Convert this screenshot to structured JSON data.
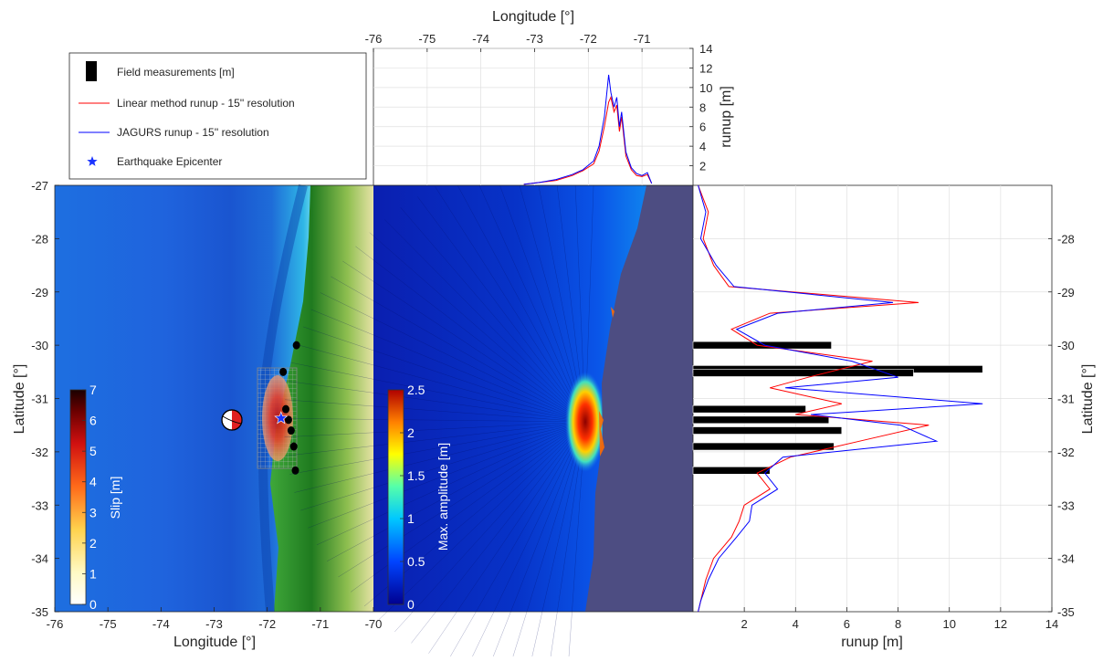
{
  "chart_data": [
    {
      "type": "heatmap",
      "panel": "slip-map",
      "xlabel": "Longitude [°]",
      "ylabel": "Latitude [°]",
      "xlim": [
        -76,
        -70
      ],
      "ylim": [
        -35,
        -27
      ],
      "xticks": [
        "-76",
        "-75",
        "-74",
        "-73",
        "-72",
        "-71",
        "-70"
      ],
      "yticks": [
        "-27",
        "-28",
        "-29",
        "-30",
        "-31",
        "-32",
        "-33",
        "-34",
        "-35"
      ],
      "colorbar": {
        "label": "Slip [m]",
        "range": [
          0,
          7
        ],
        "ticks": [
          "0",
          "1",
          "2",
          "3",
          "4",
          "5",
          "6",
          "7"
        ]
      },
      "epicenter": {
        "lon": -71.74,
        "lat": -31.37
      },
      "focal_mechanism": {
        "lon": -72.6,
        "lat": -31.4
      },
      "fault_patch": {
        "lon": [
          -72.3,
          -71.3
        ],
        "lat": [
          -30.3,
          -32.2
        ]
      },
      "field_points": [
        {
          "lon": -71.45,
          "lat": -30.0
        },
        {
          "lon": -71.7,
          "lat": -30.5
        },
        {
          "lon": -71.65,
          "lat": -31.2
        },
        {
          "lon": -71.6,
          "lat": -31.4
        },
        {
          "lon": -71.55,
          "lat": -31.6
        },
        {
          "lon": -71.5,
          "lat": -31.9
        },
        {
          "lon": -71.47,
          "lat": -32.35
        }
      ]
    },
    {
      "type": "heatmap",
      "panel": "max-amplitude-map",
      "colorbar": {
        "label": "Max. amplitude [m]",
        "range": [
          0,
          2.5
        ],
        "ticks": [
          "0",
          "0.5",
          "1",
          "1.5",
          "2",
          "2.5"
        ]
      }
    },
    {
      "type": "line",
      "panel": "runup-vs-longitude",
      "xlabel": "Longitude [°]",
      "ylabel": "runup [m]",
      "xlim": [
        -76,
        -70
      ],
      "ylim": [
        0,
        14
      ],
      "xticks": [
        "-76",
        "-75",
        "-74",
        "-73",
        "-72",
        "-71"
      ],
      "yticks": [
        "2",
        "4",
        "6",
        "8",
        "10",
        "12",
        "14"
      ],
      "series": [
        {
          "name": "Linear method runup - 15'' resolution",
          "color": "#ff0000",
          "x": [
            -73.2,
            -72.9,
            -72.6,
            -72.3,
            -72.1,
            -71.9,
            -71.8,
            -71.7,
            -71.62,
            -71.58,
            -71.52,
            -71.47,
            -71.42,
            -71.38,
            -71.3,
            -71.2,
            -71.1,
            -71.0,
            -70.9,
            -70.82
          ],
          "y": [
            0.1,
            0.3,
            0.5,
            1.0,
            1.5,
            2.2,
            3.5,
            6.0,
            8.5,
            9.0,
            7.5,
            8.2,
            5.5,
            7.0,
            3.0,
            1.6,
            1.0,
            0.9,
            1.1,
            0.2
          ]
        },
        {
          "name": "JAGURS runup - 15'' resolution",
          "color": "#0000ff",
          "x": [
            -73.2,
            -72.9,
            -72.6,
            -72.3,
            -72.1,
            -71.9,
            -71.8,
            -71.7,
            -71.62,
            -71.58,
            -71.52,
            -71.47,
            -71.42,
            -71.38,
            -71.3,
            -71.2,
            -71.1,
            -71.0,
            -70.9,
            -70.82
          ],
          "y": [
            0.1,
            0.3,
            0.6,
            1.1,
            1.6,
            2.5,
            4.0,
            7.0,
            11.3,
            9.5,
            8.0,
            9.0,
            6.0,
            7.5,
            3.4,
            1.8,
            1.2,
            1.0,
            1.3,
            0.2
          ]
        }
      ]
    },
    {
      "type": "bar",
      "panel": "runup-vs-latitude",
      "xlabel": "runup [m]",
      "ylabel": "Latitude [°]",
      "xlim": [
        0,
        14
      ],
      "ylim": [
        -35,
        -27
      ],
      "xticks": [
        "2",
        "4",
        "6",
        "8",
        "10",
        "12",
        "14"
      ],
      "yticks": [
        "-28",
        "-29",
        "-30",
        "-31",
        "-32",
        "-33",
        "-34",
        "-35"
      ],
      "field_measurements": [
        {
          "lat": -30.0,
          "runup": 5.4
        },
        {
          "lat": -30.45,
          "runup": 11.3
        },
        {
          "lat": -30.52,
          "runup": 8.6
        },
        {
          "lat": -31.2,
          "runup": 4.4
        },
        {
          "lat": -31.4,
          "runup": 5.3
        },
        {
          "lat": -31.6,
          "runup": 5.8
        },
        {
          "lat": -31.9,
          "runup": 5.5
        },
        {
          "lat": -32.35,
          "runup": 3.0
        }
      ],
      "series": [
        {
          "name": "Linear method runup - 15'' resolution",
          "color": "#ff0000",
          "lat": [
            -27.0,
            -27.5,
            -28.0,
            -28.5,
            -28.9,
            -29.2,
            -29.4,
            -29.7,
            -30.0,
            -30.3,
            -30.6,
            -30.8,
            -31.1,
            -31.3,
            -31.5,
            -31.8,
            -32.1,
            -32.4,
            -32.7,
            -33.0,
            -33.3,
            -33.6,
            -34.0,
            -34.4,
            -34.8,
            -35.0
          ],
          "runup": [
            0.2,
            0.6,
            0.4,
            0.8,
            1.4,
            8.8,
            3.0,
            1.5,
            2.5,
            7.0,
            4.5,
            3.0,
            5.8,
            4.0,
            9.2,
            6.5,
            3.8,
            2.5,
            3.0,
            2.0,
            1.8,
            1.5,
            0.8,
            0.5,
            0.3,
            0.2
          ]
        },
        {
          "name": "JAGURS runup - 15'' resolution",
          "color": "#0000ff",
          "lat": [
            -27.0,
            -27.5,
            -28.0,
            -28.5,
            -28.9,
            -29.2,
            -29.4,
            -29.7,
            -30.0,
            -30.3,
            -30.6,
            -30.8,
            -31.1,
            -31.3,
            -31.5,
            -31.8,
            -32.1,
            -32.4,
            -32.7,
            -33.0,
            -33.3,
            -33.6,
            -34.0,
            -34.4,
            -34.8,
            -35.0
          ],
          "runup": [
            0.2,
            0.5,
            0.3,
            0.9,
            1.6,
            7.8,
            3.3,
            1.7,
            2.8,
            6.2,
            8.0,
            3.6,
            11.3,
            4.6,
            8.1,
            9.5,
            3.5,
            2.8,
            3.3,
            2.3,
            2.2,
            1.7,
            1.0,
            0.6,
            0.3,
            0.2
          ]
        }
      ]
    }
  ],
  "legend": {
    "entries": [
      {
        "label": "Field measurements [m]",
        "symbol": "black-bar"
      },
      {
        "label": "Linear method runup - 15'' resolution",
        "symbol": "red-line",
        "color": "#ff0000"
      },
      {
        "label": "JAGURS runup - 15'' resolution",
        "symbol": "blue-line",
        "color": "#0000ff"
      },
      {
        "label": "Earthquake Epicenter",
        "symbol": "blue-star",
        "color": "#0000ff"
      }
    ]
  },
  "colors": {
    "land_dark_green": "#1f7a1f",
    "ocean_blue": "#1f5bd8",
    "land_mask": "#4d4d82"
  }
}
